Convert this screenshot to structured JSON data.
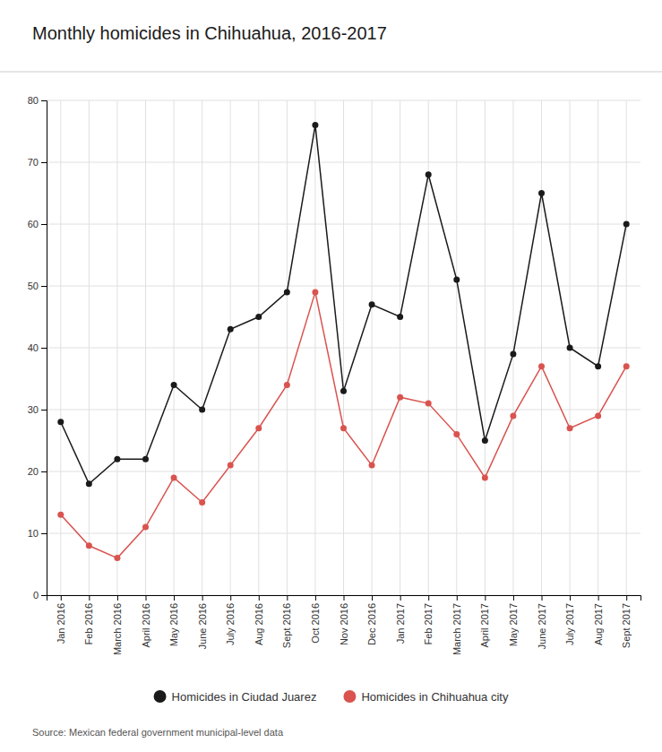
{
  "chart_data": {
    "type": "line",
    "title": "Monthly homicides in Chihuahua, 2016-2017",
    "source": "Source: Mexican federal government municipal-level data",
    "categories": [
      "Jan 2016",
      "Feb 2016",
      "March 2016",
      "April 2016",
      "May 2016",
      "June 2016",
      "July 2016",
      "Aug 2016",
      "Sept 2016",
      "Oct 2016",
      "Nov 2016",
      "Dec 2016",
      "Jan 2017",
      "Feb 2017",
      "March 2017",
      "April 2017",
      "May 2017",
      "June 2017",
      "July 2017",
      "Aug 2017",
      "Sept 2017"
    ],
    "series": [
      {
        "name": "Homicides in Ciudad Juarez",
        "color": "#1a1a1a",
        "values": [
          28,
          18,
          22,
          22,
          34,
          30,
          43,
          45,
          49,
          76,
          33,
          47,
          45,
          68,
          51,
          25,
          39,
          65,
          40,
          37,
          60
        ]
      },
      {
        "name": "Homicides in Chihuahua city",
        "color": "#d9534f",
        "values": [
          13,
          8,
          6,
          11,
          19,
          15,
          21,
          27,
          34,
          49,
          27,
          21,
          32,
          31,
          26,
          19,
          29,
          37,
          27,
          29,
          37
        ]
      }
    ],
    "ylim": [
      0,
      80
    ],
    "yticks": [
      0,
      10,
      20,
      30,
      40,
      50,
      60,
      70,
      80
    ],
    "grid": true,
    "legend": "bottom",
    "marker": "circle"
  }
}
